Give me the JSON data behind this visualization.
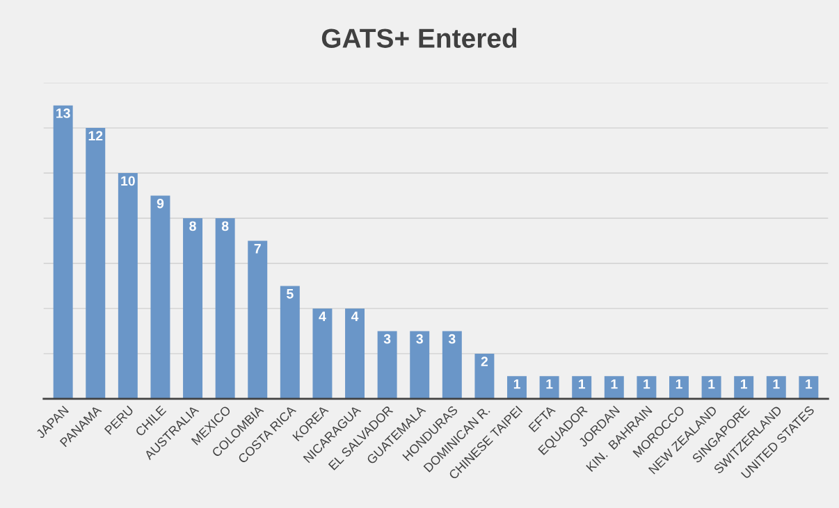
{
  "chart_data": {
    "type": "bar",
    "title": "GATS+ Entered",
    "categories": [
      "JAPAN",
      "PANAMA",
      "PERU",
      "CHILE",
      "AUSTRALIA",
      "MEXICO",
      "COLOMBIA",
      "COSTA RICA",
      "KOREA",
      "NICARAGUA",
      "EL SALVADOR",
      "GUATEMALA",
      "HONDURAS",
      "DOMINICAN R.",
      "CHINESE TAIPEI",
      "EFTA",
      "EQUADOR",
      "JORDAN",
      "KIN.  BAHRAIN",
      "MOROCCO",
      "NEW ZEALAND",
      "SINGAPORE",
      "SWITZERLAND",
      "UNITED STATES"
    ],
    "values": [
      13,
      12,
      10,
      9,
      8,
      8,
      7,
      5,
      4,
      4,
      3,
      3,
      3,
      2,
      1,
      1,
      1,
      1,
      1,
      1,
      1,
      1,
      1,
      1
    ],
    "color": "#6a96c8",
    "data_labels": true,
    "ylim": [
      0,
      14
    ],
    "yticks": [
      {
        "value": 0,
        "label": null
      },
      {
        "value": 2,
        "label": null
      },
      {
        "value": 4,
        "label": null
      },
      {
        "value": 6,
        "label": null
      },
      {
        "value": 8,
        "label": null
      },
      {
        "value": 10,
        "label": null
      },
      {
        "value": 12,
        "label": null
      },
      {
        "value": 14,
        "label": null
      }
    ],
    "grid": "y",
    "tick_labels": "x"
  }
}
